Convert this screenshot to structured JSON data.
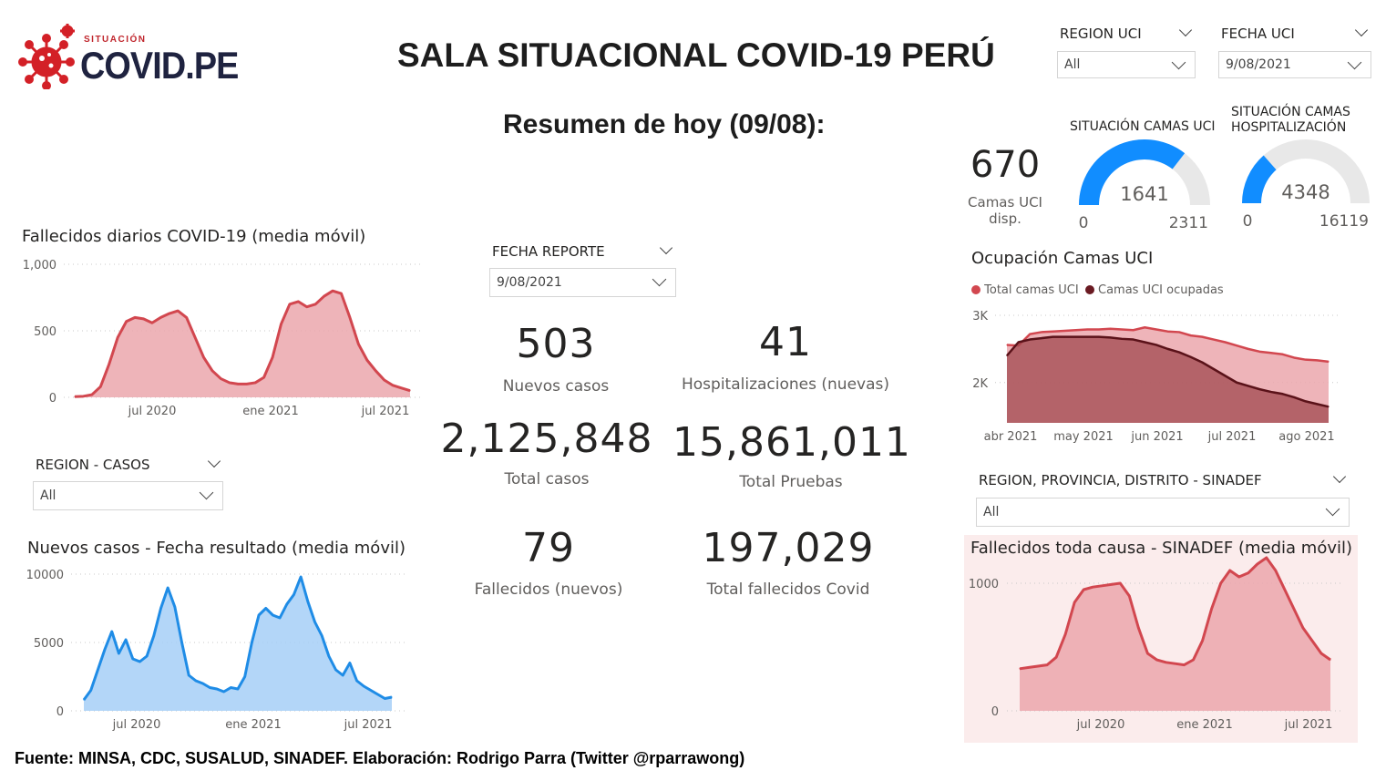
{
  "header": {
    "logo_small": "SITUACIÓN",
    "logo_big": "COVID.PE",
    "title": "SALA SITUACIONAL COVID-19 PERÚ",
    "subtitle": "Resumen de hoy (09/08):"
  },
  "filters": {
    "region_uci": {
      "label": "REGION UCI",
      "value": "All"
    },
    "fecha_uci": {
      "label": "FECHA UCI",
      "value": "9/08/2021"
    },
    "fecha_reporte": {
      "label": "FECHA REPORTE",
      "value": "9/08/2021"
    },
    "region_casos": {
      "label": "REGION - CASOS",
      "value": "All"
    },
    "region_sinadef": {
      "label": "REGION, PROVINCIA, DISTRITO - SINADEF",
      "value": "All"
    }
  },
  "uci": {
    "camas_disp_value": "670",
    "camas_disp_label": "Camas UCI disp.",
    "gauge_uci": {
      "title": "SITUACIÓN CAMAS UCI",
      "value": 1641,
      "value_label": "1641",
      "min_label": "0",
      "max_label": "2311",
      "max": 2311
    },
    "gauge_hosp": {
      "title_line1": "SITUACIÓN CAMAS",
      "title_line2": "HOSPITALIZACIÓN",
      "value": 4348,
      "value_label": "4348",
      "min_label": "0",
      "max_label": "16119",
      "max": 16119
    }
  },
  "kpis": {
    "nuevos_casos": {
      "value": "503",
      "label": "Nuevos casos"
    },
    "hospitalizaciones": {
      "value": "41",
      "label": "Hospitalizaciones (nuevas)"
    },
    "total_casos": {
      "value": "2,125,848",
      "label": "Total casos"
    },
    "total_pruebas": {
      "value": "15,861,011",
      "label": "Total Pruebas"
    },
    "fallecidos": {
      "value": "79",
      "label": "Fallecidos (nuevos)"
    },
    "total_fallecidos": {
      "value": "197,029",
      "label": "Total fallecidos Covid"
    }
  },
  "colors": {
    "red_line": "#d2474f",
    "red_fill": "#eba7ad",
    "blue_line": "#1f8ce6",
    "blue_fill": "#a6cff7",
    "dark_red": "#6a1a22",
    "gauge_blue": "#118dff",
    "gauge_grey": "#e8e8e8",
    "sinadef_bg": "#fbecec"
  },
  "footer": "Fuente: MINSA, CDC, SUSALUD, SINADEF. Elaboración: Rodrigo Parra (Twitter @rparrawong)",
  "chart_data": [
    {
      "id": "fallecidos",
      "type": "area",
      "title": "Fallecidos diarios COVID-19 (media móvil)",
      "y_ticks": [
        {
          "v": 0,
          "label": "0"
        },
        {
          "v": 500,
          "label": "500"
        },
        {
          "v": 1000,
          "label": "1,000"
        }
      ],
      "ylim": [
        0,
        1000
      ],
      "x_ticks": [
        "jul 2020",
        "ene 2021",
        "jul 2021"
      ],
      "values": [
        5,
        8,
        20,
        80,
        250,
        450,
        570,
        600,
        590,
        560,
        600,
        630,
        650,
        600,
        450,
        300,
        200,
        140,
        110,
        100,
        100,
        110,
        150,
        300,
        550,
        700,
        720,
        680,
        700,
        760,
        800,
        780,
        600,
        400,
        280,
        200,
        130,
        90,
        70,
        50
      ]
    },
    {
      "id": "casos",
      "type": "area",
      "title": "Nuevos casos - Fecha resultado (media móvil)",
      "y_ticks": [
        {
          "v": 0,
          "label": "0"
        },
        {
          "v": 5000,
          "label": "5000"
        },
        {
          "v": 10000,
          "label": "10000"
        }
      ],
      "ylim": [
        0,
        10000
      ],
      "x_ticks": [
        "jul 2020",
        "ene 2021",
        "jul 2021"
      ],
      "values": [
        800,
        1500,
        3000,
        4500,
        5800,
        4200,
        5200,
        3800,
        3600,
        4000,
        5500,
        7500,
        9000,
        7600,
        5000,
        2600,
        2200,
        2000,
        1700,
        1600,
        1400,
        1700,
        1600,
        2500,
        5000,
        7000,
        7500,
        7000,
        6800,
        7800,
        8500,
        9800,
        8000,
        6500,
        5500,
        4000,
        3000,
        2600,
        3500,
        2200,
        1800,
        1500,
        1200,
        900,
        1000
      ]
    },
    {
      "id": "ocupacion",
      "type": "area",
      "title": "Ocupación Camas UCI",
      "legend": [
        "Total camas UCI",
        "Camas UCI ocupadas"
      ],
      "y_ticks": [
        {
          "v": 2000,
          "label": "2K"
        },
        {
          "v": 3000,
          "label": "3K"
        }
      ],
      "ylim": [
        1400,
        3000
      ],
      "x_ticks": [
        "abr 2021",
        "may 2021",
        "jun 2021",
        "jul 2021",
        "ago 2021"
      ],
      "series": [
        {
          "name": "Total camas UCI",
          "values": [
            2560,
            2550,
            2720,
            2750,
            2760,
            2770,
            2780,
            2790,
            2790,
            2800,
            2790,
            2780,
            2820,
            2790,
            2760,
            2750,
            2700,
            2680,
            2640,
            2600,
            2550,
            2500,
            2460,
            2440,
            2420,
            2370,
            2340,
            2330,
            2310
          ]
        },
        {
          "name": "Camas UCI ocupadas",
          "values": [
            2400,
            2600,
            2640,
            2660,
            2680,
            2680,
            2680,
            2680,
            2680,
            2670,
            2650,
            2640,
            2600,
            2560,
            2500,
            2450,
            2380,
            2300,
            2200,
            2100,
            2000,
            1950,
            1900,
            1860,
            1830,
            1780,
            1720,
            1680,
            1640
          ]
        }
      ]
    },
    {
      "id": "sinadef",
      "type": "area",
      "title": "Fallecidos toda causa - SINADEF (media móvil)",
      "y_ticks": [
        {
          "v": 0,
          "label": "0"
        },
        {
          "v": 1000,
          "label": "1000"
        }
      ],
      "ylim": [
        0,
        1400
      ],
      "x_ticks": [
        "jul 2020",
        "ene 2021",
        "jul 2021"
      ],
      "values": [
        330,
        340,
        350,
        360,
        420,
        600,
        850,
        950,
        970,
        980,
        990,
        1000,
        900,
        650,
        450,
        400,
        380,
        370,
        360,
        400,
        550,
        800,
        1000,
        1100,
        1050,
        1080,
        1150,
        1200,
        1100,
        950,
        800,
        650,
        550,
        450,
        400
      ]
    }
  ]
}
